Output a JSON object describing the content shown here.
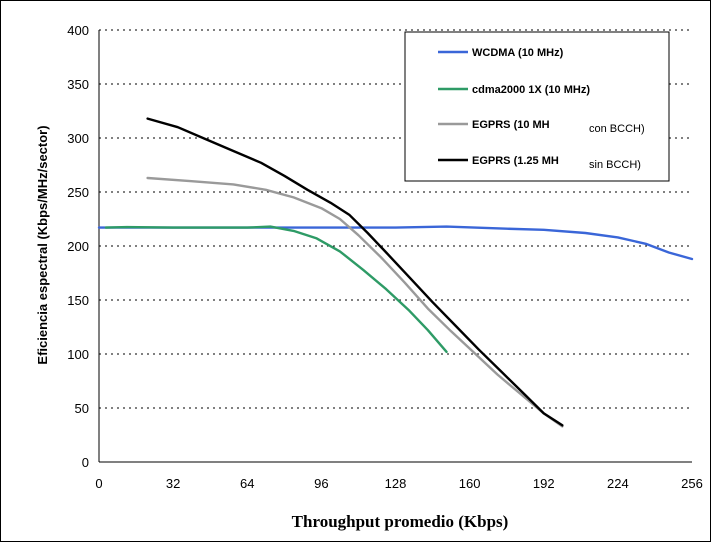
{
  "chart_data": {
    "type": "line",
    "title": "",
    "xlabel": "Throughput promedio (Kbps)",
    "ylabel": "Eficiencia espectral (Kbps/MHz/sector)",
    "xlim": [
      0,
      256
    ],
    "ylim": [
      0,
      400
    ],
    "xticks": [
      "0",
      "32",
      "64",
      "96",
      "128",
      "160",
      "192",
      "224",
      "256"
    ],
    "yticks": [
      "0",
      "50",
      "100",
      "150",
      "200",
      "250",
      "300",
      "350",
      "400"
    ],
    "grid": "horizontal dotted",
    "legend_position": "top-right",
    "series": [
      {
        "name": "WCDMA (10 MHz)",
        "color": "#3a66d8",
        "points": [
          [
            0,
            217
          ],
          [
            32,
            217
          ],
          [
            64,
            217
          ],
          [
            96,
            217
          ],
          [
            128,
            217
          ],
          [
            150,
            218
          ],
          [
            176,
            216
          ],
          [
            192,
            215
          ],
          [
            210,
            212
          ],
          [
            224,
            208
          ],
          [
            236,
            202
          ],
          [
            246,
            194
          ],
          [
            256,
            188
          ]
        ]
      },
      {
        "name": "cdma2000 1X (10 MHz)",
        "color": "#2e9b66",
        "points": [
          [
            3,
            217
          ],
          [
            12,
            217.5
          ],
          [
            32,
            217
          ],
          [
            64,
            217
          ],
          [
            74,
            218
          ],
          [
            84,
            214
          ],
          [
            94,
            207
          ],
          [
            104,
            195
          ],
          [
            114,
            178
          ],
          [
            124,
            160
          ],
          [
            134,
            140
          ],
          [
            142,
            122
          ],
          [
            150,
            102
          ]
        ]
      },
      {
        "name": "EGPRS (10 MH",
        "name_suffix": "con BCCH)",
        "color": "#9a9a9a",
        "points": [
          [
            21,
            263
          ],
          [
            40,
            260
          ],
          [
            58,
            257
          ],
          [
            72,
            252
          ],
          [
            84,
            245
          ],
          [
            96,
            235
          ],
          [
            104,
            225
          ],
          [
            112,
            210
          ],
          [
            122,
            189
          ],
          [
            132,
            166
          ],
          [
            142,
            142
          ],
          [
            152,
            121
          ],
          [
            162,
            101
          ],
          [
            172,
            81
          ],
          [
            182,
            63
          ],
          [
            192,
            45
          ],
          [
            200,
            33
          ]
        ]
      },
      {
        "name": "EGPRS (1.25 MH",
        "name_suffix": "sin BCCH)",
        "color": "#000000",
        "points": [
          [
            21,
            318
          ],
          [
            34,
            310
          ],
          [
            46,
            299
          ],
          [
            58,
            288
          ],
          [
            70,
            277
          ],
          [
            80,
            265
          ],
          [
            90,
            252
          ],
          [
            100,
            240
          ],
          [
            108,
            229
          ],
          [
            116,
            212
          ],
          [
            124,
            194
          ],
          [
            134,
            171
          ],
          [
            144,
            148
          ],
          [
            154,
            126
          ],
          [
            164,
            104
          ],
          [
            174,
            83
          ],
          [
            184,
            62
          ],
          [
            192,
            45
          ],
          [
            200,
            34
          ]
        ]
      }
    ]
  }
}
